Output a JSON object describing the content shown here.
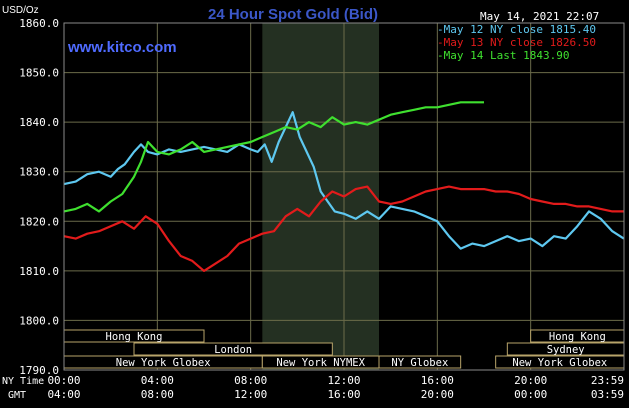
{
  "colors": {
    "background": "#000000",
    "plot_border": "#8a8a8a",
    "grid": "#6b6b4a",
    "session_shade": "#243022",
    "axis_text": "#ffffff",
    "title": "#3b57c8",
    "watermark": "#4f6bff",
    "may12": "#5ec8f0",
    "may13": "#e21b1b",
    "may14": "#3fe02f",
    "market_box": "#b8a46a",
    "market_text": "#ffffff"
  },
  "header": {
    "ylabel_top": "USD/Oz",
    "title": "24 Hour Spot Gold (Bid)",
    "timestamp": "May 14, 2021 22:07",
    "watermark": "www.kitco.com"
  },
  "footer": {
    "ny_time_label": "NY Time",
    "gmt_label": "GMT",
    "ny_ticks": [
      "00:00",
      "04:00",
      "08:00",
      "12:00",
      "16:00",
      "20:00",
      "23:59"
    ],
    "gmt_ticks": [
      "04:00",
      "08:00",
      "12:00",
      "16:00",
      "20:00",
      "00:00",
      "03:59"
    ]
  },
  "markets": [
    {
      "name": "Hong Kong",
      "row": 0,
      "start": 0,
      "end": 6.0
    },
    {
      "name": "Hong Kong",
      "row": 0,
      "start": 20.0,
      "end": 24.0
    },
    {
      "name": "London",
      "row": 1,
      "start": 3.0,
      "end": 11.5
    },
    {
      "name": "Sydney",
      "row": 1,
      "start": 19.0,
      "end": 24.0
    },
    {
      "name": "New York Globex",
      "row": 2,
      "start": 0,
      "end": 8.5
    },
    {
      "name": "New York NYMEX",
      "row": 2,
      "start": 8.5,
      "end": 13.5
    },
    {
      "name": "NY Globex",
      "row": 2,
      "start": 13.5,
      "end": 17.0
    },
    {
      "name": "New York Globex",
      "row": 2,
      "start": 18.5,
      "end": 24.0
    }
  ],
  "chart_data": {
    "type": "line",
    "title": "24 Hour Spot Gold (Bid)",
    "ylabel": "USD/Oz",
    "xlabel": "",
    "xlim": [
      0,
      24
    ],
    "ylim": [
      1790,
      1860
    ],
    "yticks": [
      "1790.0",
      "1800.0",
      "1810.0",
      "1820.0",
      "1830.0",
      "1840.0",
      "1850.0",
      "1860.0"
    ],
    "shaded_session": [
      8.5,
      13.5
    ],
    "legend_position": "top-right",
    "series": [
      {
        "name": "May 12 NY close 1815.40",
        "color": "#5ec8f0",
        "x": [
          0,
          0.5,
          1.0,
          1.5,
          2.0,
          2.3,
          2.6,
          3.0,
          3.3,
          3.6,
          4.0,
          4.5,
          5.0,
          5.5,
          6.0,
          6.5,
          7.0,
          7.5,
          8.0,
          8.3,
          8.6,
          8.9,
          9.2,
          9.5,
          9.8,
          10.1,
          10.4,
          10.7,
          11.0,
          11.3,
          11.6,
          12.0,
          12.5,
          13.0,
          13.5,
          14.0,
          14.5,
          15.0,
          15.5,
          16.0,
          16.5,
          17.0,
          17.5,
          18.0,
          18.5,
          19.0,
          19.5,
          20.0,
          20.5,
          21.0,
          21.5,
          22.0,
          22.5,
          23.0,
          23.5,
          23.99
        ],
        "y": [
          1827.5,
          1828,
          1829.5,
          1830,
          1829,
          1830.5,
          1831.5,
          1834,
          1835.5,
          1834,
          1833.5,
          1834.5,
          1834,
          1834.5,
          1835,
          1834.5,
          1834,
          1835.5,
          1834.5,
          1834,
          1835.5,
          1832,
          1836,
          1839,
          1842,
          1837,
          1834,
          1831,
          1826,
          1824,
          1822,
          1821.5,
          1820.5,
          1822,
          1820.5,
          1823,
          1822.5,
          1822,
          1821,
          1820,
          1817,
          1814.5,
          1815.5,
          1815,
          1816,
          1817,
          1816,
          1816.5,
          1815,
          1817,
          1816.5,
          1819,
          1822,
          1820.5,
          1818,
          1816.5
        ]
      },
      {
        "name": "May 13 NY close 1826.50",
        "color": "#e21b1b",
        "x": [
          0,
          0.5,
          1.0,
          1.5,
          2.0,
          2.5,
          3.0,
          3.5,
          4.0,
          4.5,
          5.0,
          5.5,
          6.0,
          6.5,
          7.0,
          7.5,
          8.0,
          8.5,
          9.0,
          9.5,
          10.0,
          10.5,
          11.0,
          11.5,
          12.0,
          12.5,
          13.0,
          13.5,
          14.0,
          14.5,
          15.0,
          15.5,
          16.0,
          16.5,
          17.0,
          17.5,
          18.0,
          18.5,
          19.0,
          19.5,
          20.0,
          20.5,
          21.0,
          21.5,
          22.0,
          22.5,
          23.0,
          23.5,
          23.99
        ],
        "y": [
          1817,
          1816.5,
          1817.5,
          1818,
          1819,
          1820,
          1818.5,
          1821,
          1819.5,
          1816,
          1813,
          1812,
          1810,
          1811.5,
          1813,
          1815.5,
          1816.5,
          1817.5,
          1818,
          1821,
          1822.5,
          1821,
          1824,
          1826,
          1825,
          1826.5,
          1827,
          1824,
          1823.5,
          1824,
          1825,
          1826,
          1826.5,
          1827,
          1826.5,
          1826.5,
          1826.5,
          1826,
          1826,
          1825.5,
          1824.5,
          1824,
          1823.5,
          1823.5,
          1823,
          1823,
          1822.5,
          1822,
          1822
        ]
      },
      {
        "name": "May 14 Last 1843.90",
        "color": "#3fe02f",
        "x": [
          0,
          0.5,
          1.0,
          1.5,
          2.0,
          2.5,
          3.0,
          3.3,
          3.6,
          4.0,
          4.5,
          5.0,
          5.5,
          6.0,
          6.5,
          7.0,
          7.5,
          8.0,
          8.5,
          9.0,
          9.5,
          10.0,
          10.5,
          11.0,
          11.5,
          12.0,
          12.5,
          13.0,
          13.5,
          14.0,
          14.5,
          15.0,
          15.5,
          16.0,
          16.5,
          17.0,
          17.5,
          18.0
        ],
        "y": [
          1822,
          1822.5,
          1823.5,
          1822,
          1824,
          1825.5,
          1829,
          1832,
          1836,
          1834,
          1833.5,
          1834.5,
          1836,
          1834,
          1834.5,
          1835,
          1835.5,
          1836,
          1837,
          1838,
          1839,
          1838.5,
          1840,
          1839,
          1841,
          1839.5,
          1840,
          1839.5,
          1840.5,
          1841.5,
          1842,
          1842.5,
          1843,
          1843,
          1843.5,
          1844,
          1844,
          1844
        ]
      }
    ]
  }
}
